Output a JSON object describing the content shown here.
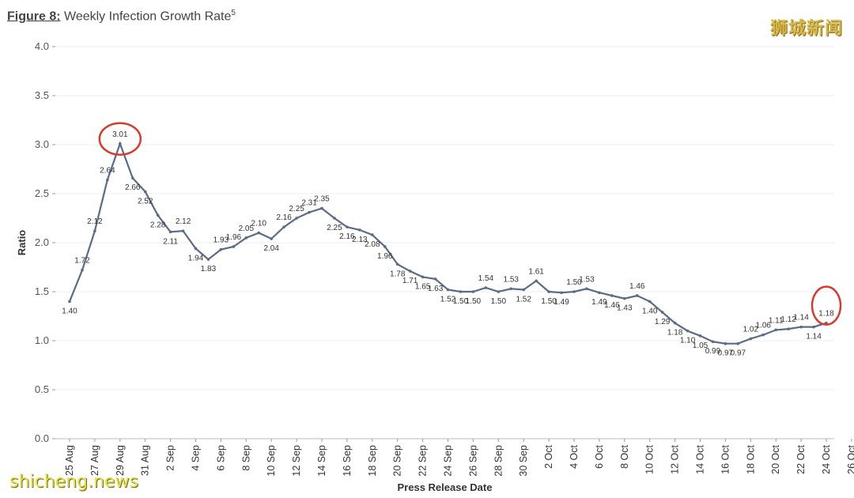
{
  "figure": {
    "lead": "Figure 8:",
    "title": "Weekly Infection Growth Rate",
    "sup": "5"
  },
  "watermarks": {
    "cn": "狮城新闻",
    "en": "shicheng.news"
  },
  "colors": {
    "line": "#5a6b88",
    "highlight": "#d93a2b",
    "grid": "#eeeeee"
  },
  "chart_data": {
    "type": "line",
    "xlabel": "Press Release Date",
    "ylabel": "Ratio",
    "ylim": [
      0,
      4
    ],
    "yticks": [
      "0.0",
      "0.5",
      "1.0",
      "1.5",
      "2.0",
      "2.5",
      "3.0",
      "3.5",
      "4.0"
    ],
    "x_tick_labels": [
      "25 Aug",
      "27 Aug",
      "29 Aug",
      "31 Aug",
      "2 Sep",
      "4 Sep",
      "6 Sep",
      "8 Sep",
      "10 Sep",
      "12 Sep",
      "14 Sep",
      "16 Sep",
      "18 Sep",
      "20 Sep",
      "22 Sep",
      "24 Sep",
      "26 Sep",
      "28 Sep",
      "30 Sep",
      "2 Oct",
      "4 Oct",
      "6 Oct",
      "8 Oct",
      "10 Oct",
      "12 Oct",
      "14 Oct",
      "16 Oct",
      "18 Oct",
      "20 Oct",
      "22 Oct",
      "24 Oct",
      "26 Oct"
    ],
    "x_start": "25 Aug",
    "x_end": "26 Oct",
    "values": [
      1.4,
      1.72,
      2.12,
      2.64,
      3.01,
      2.66,
      2.52,
      2.28,
      2.11,
      2.12,
      1.94,
      1.83,
      1.93,
      1.96,
      2.05,
      2.1,
      2.04,
      2.16,
      2.25,
      2.31,
      2.35,
      2.25,
      2.16,
      2.13,
      2.08,
      1.96,
      1.78,
      1.71,
      1.65,
      1.63,
      1.52,
      1.5,
      1.5,
      1.54,
      1.5,
      1.53,
      1.52,
      1.61,
      1.5,
      1.49,
      1.5,
      1.53,
      1.49,
      1.46,
      1.43,
      1.46,
      1.4,
      1.29,
      1.18,
      1.1,
      1.05,
      0.99,
      0.97,
      0.97,
      1.02,
      1.06,
      1.11,
      1.12,
      1.14,
      1.14,
      1.18
    ],
    "value_labels": [
      "1.40",
      "1.72",
      "2.12",
      "2.64",
      "3.01",
      "2.66",
      "2.52",
      "2.28",
      "2.11",
      "2.12",
      "1.94",
      "1.83",
      "1.93",
      "1.96",
      "2.05",
      "2.10",
      "2.04",
      "2.16",
      "2.25",
      "2.31",
      "2.35",
      "2.25",
      "2.16",
      "2.13",
      "2.08",
      "1.96",
      "1.78",
      "1.71",
      "1.65",
      "1.63",
      "1.52",
      "1.50",
      "1.50",
      "1.54",
      "1.50",
      "1.53",
      "1.52",
      "1.61",
      "1.50",
      "1.49",
      "1.50",
      "1.53",
      "1.49",
      "1.46",
      "1.43",
      "1.46",
      "1.40",
      "1.29",
      "1.18",
      "1.10",
      "1.05",
      "0.99",
      "0.97",
      "0.97",
      "1.02",
      "1.06",
      "1.11",
      "1.12",
      "1.14",
      "1.14",
      "1.18"
    ],
    "highlighted_points": [
      "29 Aug/30 Aug peak 3.01",
      "26 Oct 1.18"
    ],
    "grid": true,
    "legend": "none"
  }
}
